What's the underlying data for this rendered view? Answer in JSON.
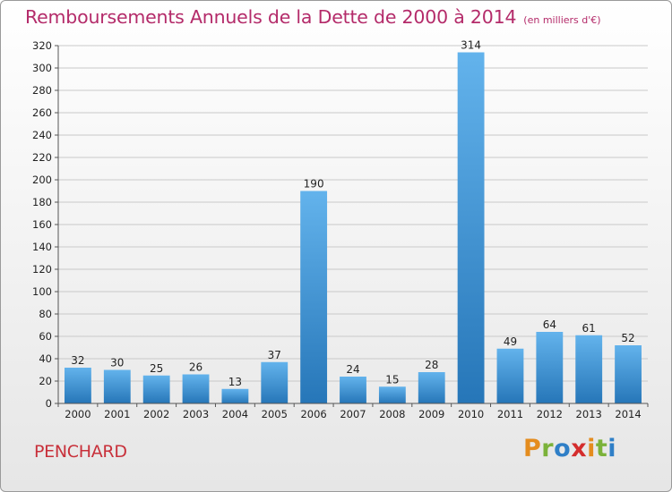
{
  "title": "Remboursements Annuels de la Dette de 2000 à 2014",
  "subtitle": "(en milliers d'€)",
  "commune": "PENCHARD",
  "brand": {
    "letters": [
      "P",
      "r",
      "o",
      "x",
      "i",
      "t",
      "i"
    ],
    "colors": [
      "#e48c1e",
      "#7bb23a",
      "#2f7fc7",
      "#d42d2d",
      "#e48c1e",
      "#7bb23a",
      "#2f7fc7"
    ]
  },
  "colors": {
    "bar_top": "#63b3ec",
    "bar_bottom": "#2676b8",
    "grid": "#c9c9c9",
    "axis": "#555555",
    "title": "#b42b6a",
    "commune": "#c8303a"
  },
  "chart_data": {
    "type": "bar",
    "categories": [
      "2000",
      "2001",
      "2002",
      "2003",
      "2004",
      "2005",
      "2006",
      "2007",
      "2008",
      "2009",
      "2010",
      "2011",
      "2012",
      "2013",
      "2014"
    ],
    "values": [
      32,
      30,
      25,
      26,
      13,
      37,
      190,
      24,
      15,
      28,
      314,
      49,
      64,
      61,
      52
    ],
    "title": "Remboursements Annuels de la Dette de 2000 à 2014",
    "subtitle": "(en milliers d'€)",
    "xlabel": "",
    "ylabel": "",
    "ylim": [
      0,
      320
    ],
    "yticks": [
      0,
      20,
      40,
      60,
      80,
      100,
      120,
      140,
      160,
      180,
      200,
      220,
      240,
      260,
      280,
      300,
      320
    ],
    "grid": true,
    "legend": "none",
    "data_labels": true
  }
}
